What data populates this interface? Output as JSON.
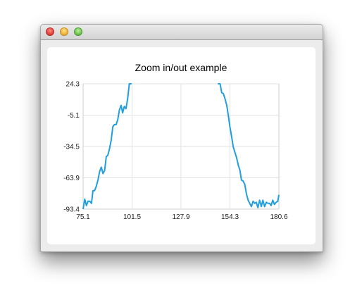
{
  "window": {
    "buttons": [
      "close",
      "minimize",
      "zoom"
    ]
  },
  "chart_data": {
    "type": "line",
    "title": "Zoom in/out example",
    "xlabel": "",
    "ylabel": "",
    "xlim": [
      75.1,
      180.6
    ],
    "ylim": [
      -93.4,
      24.3
    ],
    "x_ticks": [
      "75.1",
      "101.5",
      "127.9",
      "154.3",
      "180.6"
    ],
    "y_ticks": [
      "24.3",
      "-5.1",
      "-34.5",
      "-63.9",
      "-93.4"
    ],
    "grid": true,
    "legend": "none",
    "series_color": "#209fdf",
    "series": [
      {
        "x": [
          75.1,
          76.0,
          76.9,
          77.8,
          78.7,
          79.6,
          80.4,
          81.3,
          82.2,
          83.1,
          84.0,
          84.9,
          85.8,
          86.7,
          87.6,
          88.4,
          89.3,
          90.2,
          91.1,
          92.0,
          92.9,
          93.8,
          94.7,
          95.6,
          96.4,
          97.3,
          98.2,
          99.1,
          100.0,
          100.9,
          148.0,
          148.9,
          149.8,
          150.7,
          151.6,
          152.5,
          153.3,
          154.2,
          155.1,
          156.0,
          156.9,
          157.8,
          158.7,
          159.6,
          160.4,
          161.3,
          162.2,
          163.1,
          164.0,
          164.9,
          165.8,
          166.7,
          167.6,
          168.4,
          169.3,
          170.2,
          171.1,
          172.0,
          172.9,
          173.8,
          174.7,
          175.6,
          176.4,
          177.3,
          178.2,
          179.1,
          180.0,
          180.6
        ],
        "y": [
          -93.4,
          -84.0,
          -90.0,
          -86.0,
          -86.0,
          -88.0,
          -76.0,
          -76.0,
          -72.0,
          -66.0,
          -58.0,
          -54.0,
          -60.0,
          -57.0,
          -44.0,
          -43.0,
          -37.0,
          -29.0,
          -16.0,
          -14.0,
          -14.0,
          -9.0,
          0.0,
          4.0,
          -3.0,
          3.0,
          1.0,
          10.0,
          24.3,
          24.3,
          24.3,
          24.3,
          16.0,
          15.0,
          10.0,
          4.0,
          -5.0,
          -16.0,
          -25.0,
          -35.0,
          -40.0,
          -45.0,
          -52.0,
          -57.0,
          -66.0,
          -67.0,
          -70.0,
          -79.0,
          -85.0,
          -88.0,
          -91.0,
          -86.0,
          -88.0,
          -87.0,
          -92.0,
          -85.0,
          -91.0,
          -85.0,
          -91.0,
          -87.0,
          -88.0,
          -88.0,
          -90.0,
          -85.0,
          -89.0,
          -87.0,
          -86.0,
          -80.0
        ]
      }
    ]
  }
}
